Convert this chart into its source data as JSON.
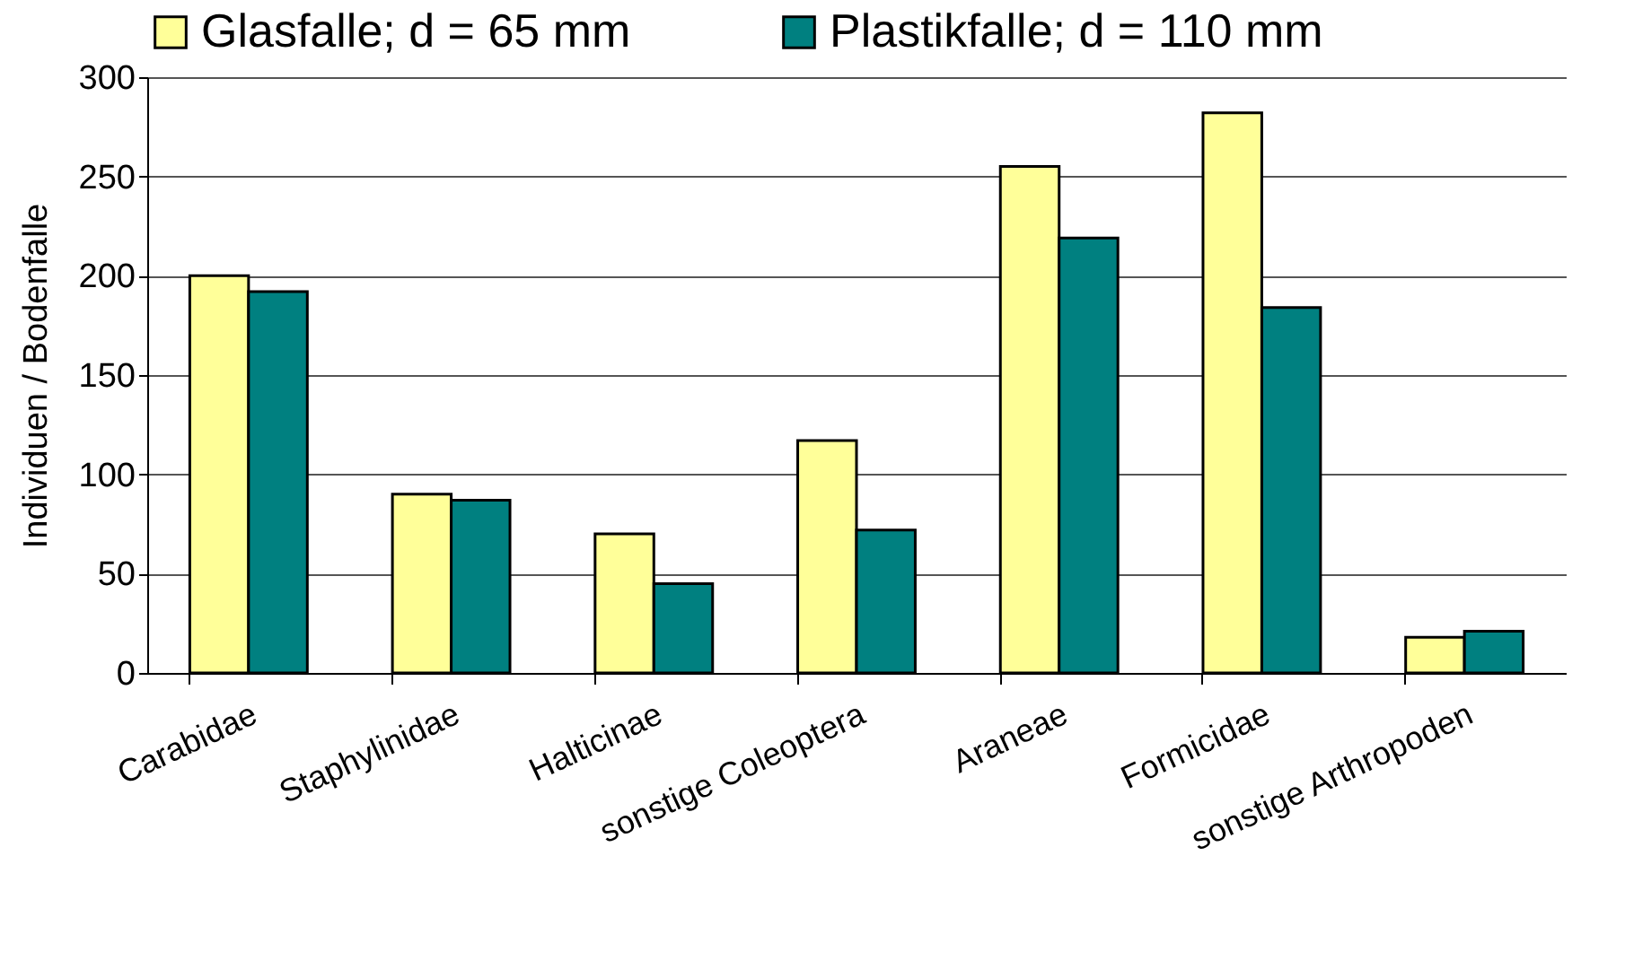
{
  "chart_data": {
    "type": "bar",
    "ylabel": "Individuen / Bodenfalle",
    "categories": [
      "Carabidae",
      "Staphylinidae",
      "Halticinae",
      "sonstige Coleoptera",
      "Araneae",
      "Formicidae",
      "sonstige Arthropoden"
    ],
    "series": [
      {
        "name": "Glasfalle; d = 65 mm",
        "color": "#ffff99",
        "values": [
          200,
          90,
          70,
          117,
          255,
          282,
          18
        ]
      },
      {
        "name": "Plastikfalle; d = 110 mm",
        "color": "#008080",
        "values": [
          192,
          87,
          45,
          72,
          219,
          184,
          21
        ]
      }
    ],
    "ylim": [
      0,
      300
    ],
    "yticks": [
      0,
      50,
      100,
      150,
      200,
      250,
      300
    ],
    "grid": "y",
    "legend": "top"
  }
}
